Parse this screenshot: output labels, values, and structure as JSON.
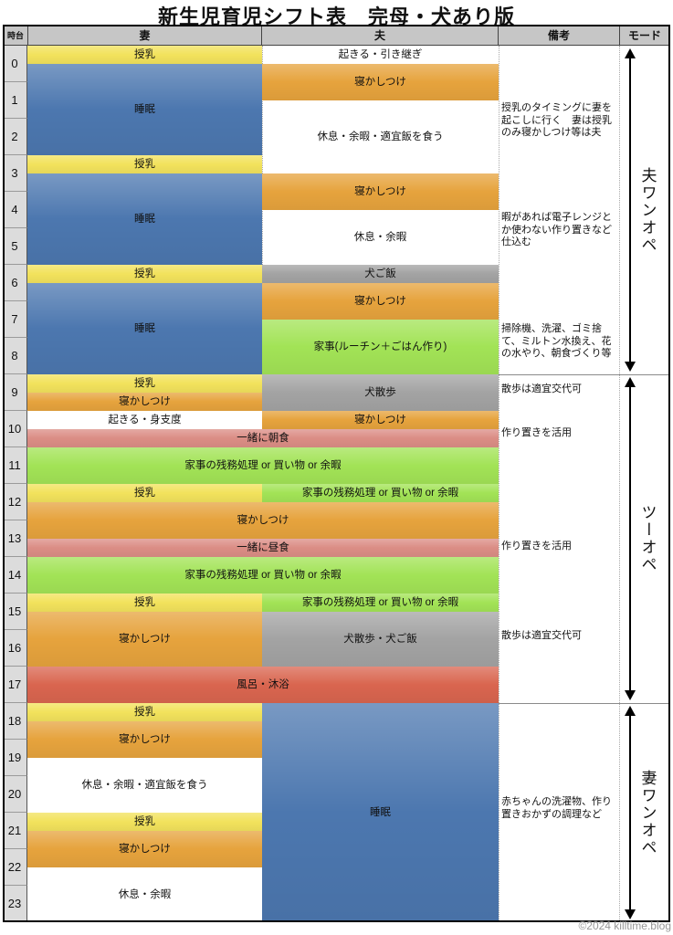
{
  "title": "新生児育児シフト表　完母・犬あり版",
  "watermark": "©2024 killtime.blog",
  "header": {
    "hour": "時台",
    "wife": "妻",
    "husband": "夫",
    "notes": "備考",
    "mode": "モード"
  },
  "hours": [
    0,
    1,
    2,
    3,
    4,
    5,
    6,
    7,
    8,
    9,
    10,
    11,
    12,
    13,
    14,
    15,
    16,
    17,
    18,
    19,
    20,
    21,
    22,
    23
  ],
  "colors": {
    "yellow": "#F2E25C",
    "blue": "#4C77AF",
    "orange": "#E6A33D",
    "gray": "#A3A3A3",
    "green": "#A2E356",
    "pink": "#DB8D85",
    "red": "#D9654F",
    "header_bg": "#C6C6C6",
    "hour_col_bg": "#DCDCDC"
  },
  "cells": [
    {
      "col": "wife",
      "start": 0,
      "end": 0.5,
      "label": "授乳",
      "color": "yellow"
    },
    {
      "col": "wife",
      "start": 0.5,
      "end": 3,
      "label": "睡眠",
      "color": "blue"
    },
    {
      "col": "wife",
      "start": 3,
      "end": 3.5,
      "label": "授乳",
      "color": "yellow"
    },
    {
      "col": "wife",
      "start": 3.5,
      "end": 6,
      "label": "睡眠",
      "color": "blue"
    },
    {
      "col": "wife",
      "start": 6,
      "end": 6.5,
      "label": "授乳",
      "color": "yellow"
    },
    {
      "col": "wife",
      "start": 6.5,
      "end": 9,
      "label": "睡眠",
      "color": "blue"
    },
    {
      "col": "wife",
      "start": 9,
      "end": 9.5,
      "label": "授乳",
      "color": "yellow"
    },
    {
      "col": "wife",
      "start": 9.5,
      "end": 10,
      "label": "寝かしつけ",
      "color": "orange"
    },
    {
      "col": "wife",
      "start": 10,
      "end": 10.5,
      "label": "起きる・身支度",
      "color": "white"
    },
    {
      "col": "wife",
      "start": 12,
      "end": 12.5,
      "label": "授乳",
      "color": "yellow"
    },
    {
      "col": "wife",
      "start": 15,
      "end": 15.5,
      "label": "授乳",
      "color": "yellow"
    },
    {
      "col": "wife",
      "start": 15.5,
      "end": 17,
      "label": "寝かしつけ",
      "color": "orange"
    },
    {
      "col": "wife",
      "start": 18,
      "end": 18.5,
      "label": "授乳",
      "color": "yellow"
    },
    {
      "col": "wife",
      "start": 18.5,
      "end": 19.5,
      "label": "寝かしつけ",
      "color": "orange"
    },
    {
      "col": "wife",
      "start": 19.5,
      "end": 21,
      "label": "休息・余暇・適宜飯を食う",
      "color": "white"
    },
    {
      "col": "wife",
      "start": 21,
      "end": 21.5,
      "label": "授乳",
      "color": "yellow"
    },
    {
      "col": "wife",
      "start": 21.5,
      "end": 22.5,
      "label": "寝かしつけ",
      "color": "orange"
    },
    {
      "col": "wife",
      "start": 22.5,
      "end": 24,
      "label": "休息・余暇",
      "color": "white"
    },
    {
      "col": "husband",
      "start": 0,
      "end": 0.5,
      "label": "起きる・引き継ぎ",
      "color": "white"
    },
    {
      "col": "husband",
      "start": 0.5,
      "end": 1.5,
      "label": "寝かしつけ",
      "color": "orange"
    },
    {
      "col": "husband",
      "start": 1.5,
      "end": 3.5,
      "label": "休息・余暇・適宜飯を食う",
      "color": "white"
    },
    {
      "col": "husband",
      "start": 3.5,
      "end": 4.5,
      "label": "寝かしつけ",
      "color": "orange"
    },
    {
      "col": "husband",
      "start": 4.5,
      "end": 6,
      "label": "休息・余暇",
      "color": "white"
    },
    {
      "col": "husband",
      "start": 6,
      "end": 6.5,
      "label": "犬ご飯",
      "color": "gray"
    },
    {
      "col": "husband",
      "start": 6.5,
      "end": 7.5,
      "label": "寝かしつけ",
      "color": "orange"
    },
    {
      "col": "husband",
      "start": 7.5,
      "end": 9,
      "label": "家事(ルーチン＋ごはん作り)",
      "color": "green"
    },
    {
      "col": "husband",
      "start": 9,
      "end": 10,
      "label": "犬散歩",
      "color": "gray"
    },
    {
      "col": "husband",
      "start": 10,
      "end": 10.5,
      "label": "寝かしつけ",
      "color": "orange"
    },
    {
      "col": "husband",
      "start": 12,
      "end": 12.5,
      "label": "家事の残務処理 or 買い物 or 余暇",
      "color": "green"
    },
    {
      "col": "husband",
      "start": 15,
      "end": 15.5,
      "label": "家事の残務処理 or 買い物 or 余暇",
      "color": "green"
    },
    {
      "col": "husband",
      "start": 15.5,
      "end": 17,
      "label": "犬散歩・犬ご飯",
      "color": "gray"
    },
    {
      "col": "husband",
      "start": 18,
      "end": 24,
      "label": "睡眠",
      "color": "blue"
    },
    {
      "col": "both",
      "start": 10.5,
      "end": 11,
      "label": "一緒に朝食",
      "color": "pink"
    },
    {
      "col": "both",
      "start": 11,
      "end": 12,
      "label": "家事の残務処理 or 買い物 or 余暇",
      "color": "green"
    },
    {
      "col": "both",
      "start": 12.5,
      "end": 13.5,
      "label": "寝かしつけ",
      "color": "orange"
    },
    {
      "col": "both",
      "start": 13.5,
      "end": 14,
      "label": "一緒に昼食",
      "color": "pink"
    },
    {
      "col": "both",
      "start": 14,
      "end": 15,
      "label": "家事の残務処理 or 買い物 or 余暇",
      "color": "green"
    },
    {
      "col": "both",
      "start": 17,
      "end": 18,
      "label": "風呂・沐浴",
      "color": "red"
    }
  ],
  "notes": [
    {
      "at": 1.55,
      "label": "授乳のタイミングに妻を起こしに行く　妻は授乳のみ寝かしつけ等は夫"
    },
    {
      "at": 4.55,
      "label": "暇があれば電子レンジとか使わない作り置きなど仕込む"
    },
    {
      "at": 7.6,
      "label": "掃除機、洗濯、ゴミ捨て、ミルトン水換え、花の水やり、朝食づくり等"
    },
    {
      "at": 9.25,
      "label": "散歩は適宜交代可"
    },
    {
      "at": 10.45,
      "label": "作り置きを活用"
    },
    {
      "at": 13.55,
      "label": "作り置きを活用"
    },
    {
      "at": 16.0,
      "label": "散歩は適宜交代可"
    },
    {
      "at": 20.55,
      "label": "赤ちゃんの洗濯物、作り置きおかずの調理など"
    }
  ],
  "modes": [
    {
      "start": 0,
      "end": 9,
      "label": "夫ワンオペ"
    },
    {
      "start": 9,
      "end": 18,
      "label": "ツーオペ"
    },
    {
      "start": 18,
      "end": 24,
      "label": "妻ワンオペ"
    }
  ]
}
